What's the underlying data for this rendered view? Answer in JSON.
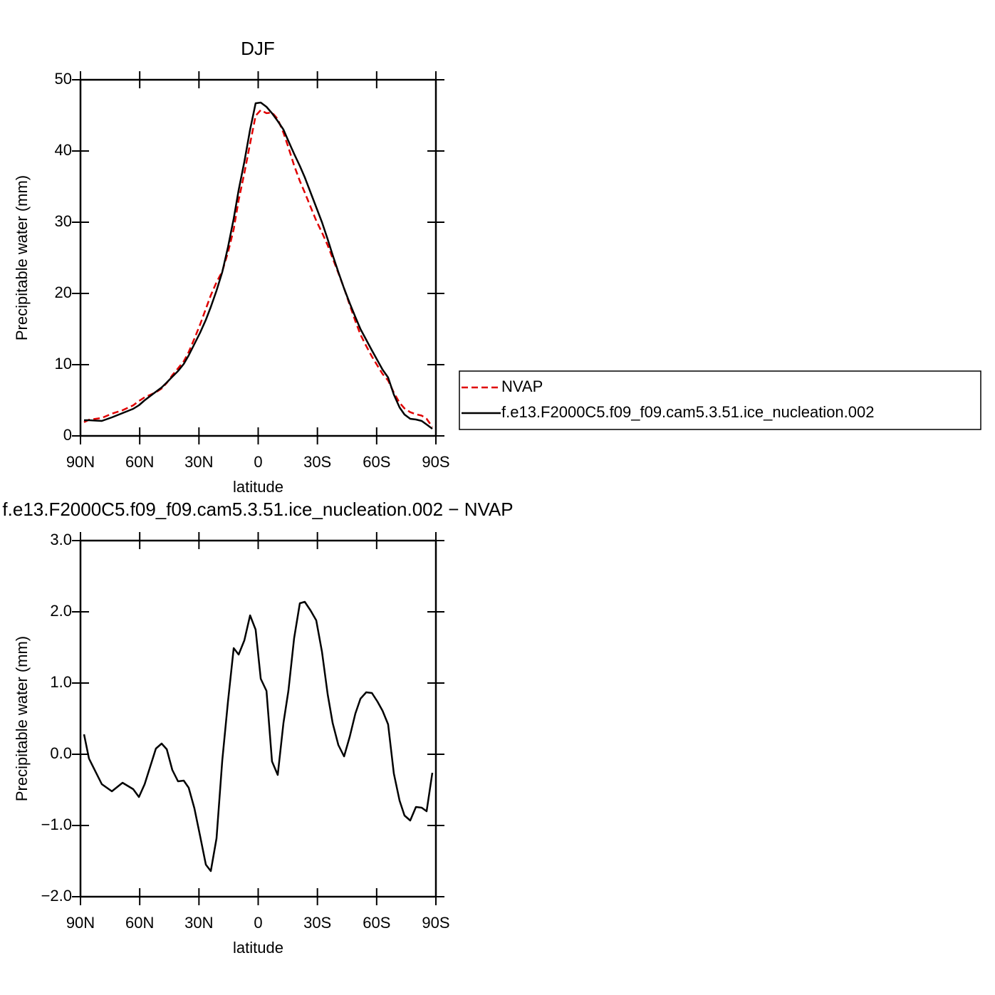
{
  "chart_data": [
    {
      "type": "line",
      "title": "DJF",
      "xlabel": "latitude",
      "ylabel": "Precipitable water (mm)",
      "xlim": [
        90,
        -90
      ],
      "xticks": [
        {
          "value": 90,
          "label": "90N"
        },
        {
          "value": 60,
          "label": "60N"
        },
        {
          "value": 30,
          "label": "30N"
        },
        0,
        {
          "value": -30,
          "label": "30S"
        },
        {
          "value": -60,
          "label": "60S"
        },
        {
          "value": -90,
          "label": "90S"
        }
      ],
      "ylim": [
        0,
        50
      ],
      "yticks": [
        0,
        10,
        20,
        30,
        40,
        50
      ],
      "legend": "right",
      "x": [
        88.2,
        85.7,
        79.2,
        74.1,
        68.7,
        63.3,
        60.4,
        57.5,
        51.8,
        48.9,
        46.3,
        43.5,
        40.6,
        37.7,
        35.2,
        32.3,
        29.4,
        26.5,
        24.0,
        21.1,
        18.2,
        15.3,
        12.4,
        9.9,
        7.0,
        4.1,
        1.3,
        -1.3,
        -4.2,
        -7.0,
        -9.9,
        -12.8,
        -15.3,
        -18.2,
        -21.1,
        -23.6,
        -26.5,
        -29.4,
        -32.3,
        -35.2,
        -37.7,
        -40.6,
        -43.5,
        -46.4,
        -49.2,
        -51.8,
        -54.7,
        -57.6,
        -60.4,
        -63.0,
        -65.8,
        -68.7,
        -71.6,
        -74.1,
        -77.0,
        -79.9,
        -82.8,
        -85.3,
        -88.2
      ],
      "series": [
        {
          "name": "NVAP",
          "color": "#e00000",
          "dashed": true,
          "values": [
            1.92,
            2.26,
            2.52,
            3.12,
            3.6,
            4.29,
            4.9,
            5.42,
            6.12,
            6.65,
            7.43,
            8.52,
            9.48,
            10.47,
            11.77,
            13.66,
            15.65,
            17.85,
            19.74,
            21.58,
            23.09,
            25.76,
            29.01,
            33.1,
            36.9,
            41.05,
            44.95,
            45.74,
            45.31,
            45.4,
            44.49,
            42.56,
            40.51,
            37.97,
            35.78,
            34.16,
            32.18,
            30.22,
            28.56,
            26.76,
            24.96,
            22.87,
            20.73,
            18.35,
            16.13,
            14.22,
            12.63,
            11.14,
            9.86,
            8.69,
            7.78,
            6.07,
            4.65,
            3.86,
            3.33,
            3.04,
            2.85,
            2.4,
            1.26
          ]
        },
        {
          "name": "f.e13.F2000C5.f09_f09.cam5.3.51.ice_nucleation.002",
          "color": "#000000",
          "dashed": false,
          "values": [
            2.2,
            2.2,
            2.1,
            2.6,
            3.2,
            3.8,
            4.3,
            5.0,
            6.2,
            6.8,
            7.5,
            8.3,
            9.1,
            10.1,
            11.3,
            12.9,
            14.5,
            16.3,
            18.1,
            20.4,
            23.0,
            26.5,
            30.5,
            34.5,
            38.5,
            43,
            46.7,
            46.8,
            46.2,
            45.3,
            44.2,
            43.0,
            41.4,
            39.6,
            37.9,
            36.3,
            34.2,
            32.1,
            30.0,
            27.6,
            25.4,
            23.0,
            20.7,
            18.6,
            16.7,
            15.0,
            13.5,
            12.0,
            10.6,
            9.3,
            8.2,
            5.8,
            4.0,
            3.0,
            2.4,
            2.3,
            2.1,
            1.6,
            1.0
          ]
        }
      ]
    },
    {
      "type": "line",
      "title": "f.e13.F2000C5.f09_f09.cam5.3.51.ice_nucleation.002 − NVAP",
      "xlabel": "latitude",
      "ylabel": "Precipitable water (mm)",
      "xlim": [
        90,
        -90
      ],
      "xticks": [
        {
          "value": 90,
          "label": "90N"
        },
        {
          "value": 60,
          "label": "60N"
        },
        {
          "value": 30,
          "label": "30N"
        },
        0,
        {
          "value": -30,
          "label": "30S"
        },
        {
          "value": -60,
          "label": "60S"
        },
        {
          "value": -90,
          "label": "90S"
        }
      ],
      "ylim": [
        -2,
        3
      ],
      "yticks": [
        {
          "value": -2,
          "label": "−2.0"
        },
        {
          "value": -1,
          "label": "−1.0"
        },
        {
          "value": 0,
          "label": "0.0"
        },
        {
          "value": 1,
          "label": "1.0"
        },
        {
          "value": 2,
          "label": "2.0"
        },
        {
          "value": 3,
          "label": "3.0"
        }
      ],
      "x": [
        88.2,
        85.7,
        79.2,
        74.1,
        68.7,
        63.3,
        60.4,
        57.5,
        51.8,
        48.9,
        46.3,
        43.5,
        40.6,
        37.7,
        35.2,
        32.3,
        29.4,
        26.5,
        24.0,
        21.1,
        18.2,
        15.3,
        12.4,
        9.9,
        7.0,
        4.1,
        1.3,
        -1.3,
        -4.2,
        -7.0,
        -9.9,
        -12.8,
        -15.3,
        -18.2,
        -21.1,
        -23.6,
        -26.5,
        -29.4,
        -32.3,
        -35.2,
        -37.7,
        -40.6,
        -43.5,
        -46.4,
        -49.2,
        -51.8,
        -54.7,
        -57.6,
        -60.4,
        -63.0,
        -65.8,
        -68.7,
        -71.6,
        -74.1,
        -77.0,
        -79.9,
        -82.8,
        -85.3,
        -88.2
      ],
      "series": [
        {
          "color": "#000000",
          "dashed": false,
          "values": [
            0.28,
            -0.06,
            -0.42,
            -0.52,
            -0.4,
            -0.49,
            -0.6,
            -0.42,
            0.08,
            0.15,
            0.07,
            -0.22,
            -0.38,
            -0.37,
            -0.47,
            -0.76,
            -1.15,
            -1.55,
            -1.64,
            -1.18,
            -0.09,
            0.74,
            1.49,
            1.4,
            1.6,
            1.95,
            1.75,
            1.06,
            0.89,
            -0.1,
            -0.29,
            0.44,
            0.89,
            1.63,
            2.12,
            2.14,
            2.02,
            1.88,
            1.44,
            0.84,
            0.44,
            0.13,
            -0.03,
            0.25,
            0.57,
            0.78,
            0.87,
            0.86,
            0.74,
            0.61,
            0.42,
            -0.27,
            -0.65,
            -0.86,
            -0.93,
            -0.74,
            -0.75,
            -0.8,
            -0.26
          ]
        }
      ]
    }
  ]
}
